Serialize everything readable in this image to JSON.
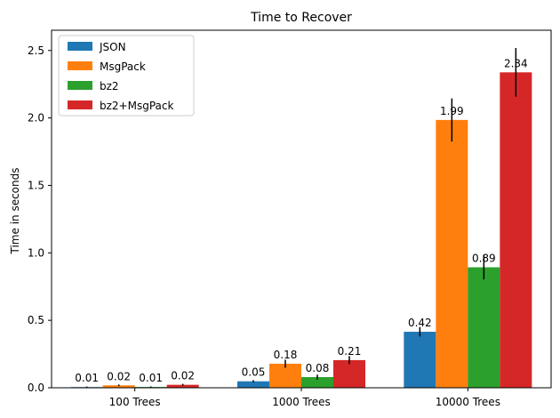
{
  "chart_data": {
    "type": "bar",
    "title": "Time to Recover",
    "xlabel": "",
    "ylabel": "Time in seconds",
    "categories": [
      "100 Trees",
      "1000 Trees",
      "10000 Trees"
    ],
    "ylim": [
      0,
      2.65
    ],
    "yticks": [
      "0.0",
      "0.5",
      "1.0",
      "1.5",
      "2.0",
      "2.5"
    ],
    "legend_position": "top-left",
    "series": [
      {
        "name": "JSON",
        "color": "#1f77b4",
        "values": [
          0.005,
          0.048,
          0.415
        ],
        "errors": [
          0.004,
          0.008,
          0.035
        ],
        "labels": [
          "0.01",
          "0.05",
          "0.42"
        ]
      },
      {
        "name": "MsgPack",
        "color": "#ff7f0e",
        "values": [
          0.018,
          0.178,
          1.985
        ],
        "errors": [
          0.006,
          0.03,
          0.16
        ],
        "labels": [
          "0.02",
          "0.18",
          "1.99"
        ]
      },
      {
        "name": "bz2",
        "color": "#2ca02c",
        "values": [
          0.006,
          0.079,
          0.893
        ],
        "errors": [
          0.004,
          0.018,
          0.09
        ],
        "labels": [
          "0.01",
          "0.08",
          "0.89"
        ]
      },
      {
        "name": "bz2+MsgPack",
        "color": "#d62728",
        "values": [
          0.022,
          0.205,
          2.338
        ],
        "errors": [
          0.007,
          0.03,
          0.18
        ],
        "labels": [
          "0.02",
          "0.21",
          "2.34"
        ]
      }
    ]
  }
}
